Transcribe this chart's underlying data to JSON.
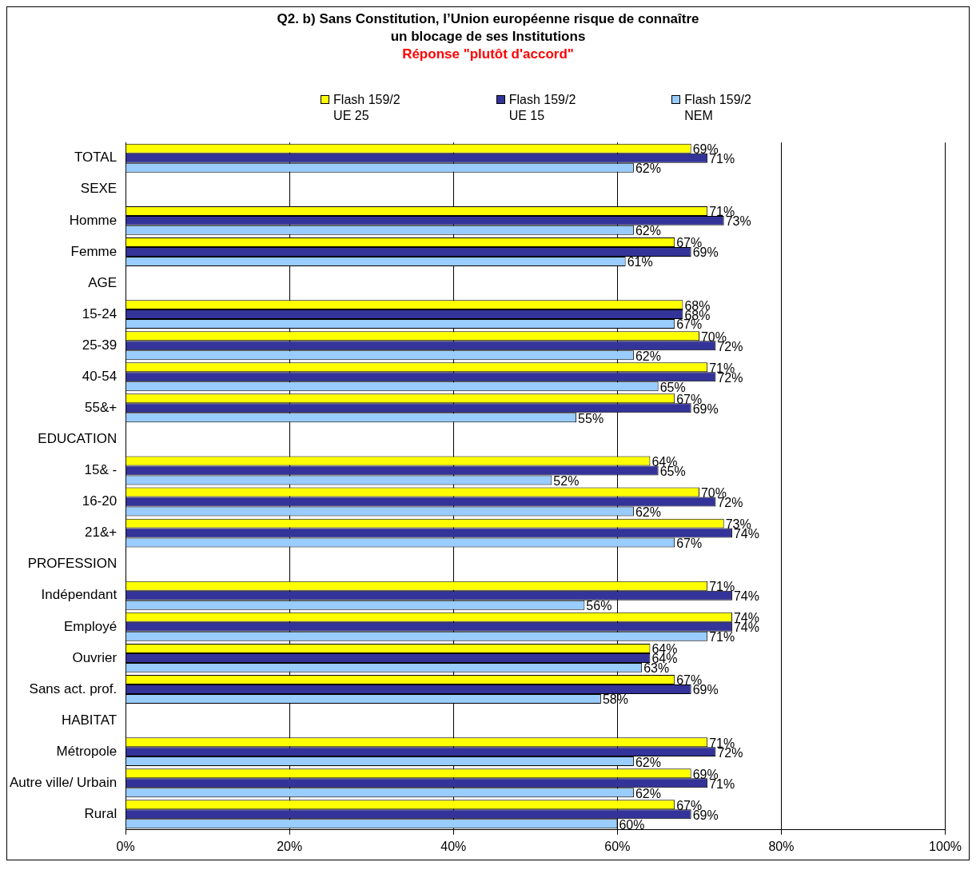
{
  "chart_data": {
    "type": "bar",
    "orientation": "horizontal",
    "title": "Q2. b) Sans Constitution, l’Union européenne risque de connaître\nun blocage de ses Institutions",
    "subtitle": "Réponse \"plutôt d'accord\"",
    "categories": [
      "TOTAL",
      "SEXE",
      "Homme",
      "Femme",
      "AGE",
      "15-24",
      "25-39",
      "40-54",
      "55&+",
      "EDUCATION",
      "15& -",
      "16-20",
      "21&+",
      "PROFESSION",
      "Indépendant",
      "Employé",
      "Ouvrier",
      "Sans act. prof.",
      "HABITAT",
      "Métropole",
      "Autre ville/ Urbain",
      "Rural"
    ],
    "series": [
      {
        "name": "Flash 159/2\nUE 25",
        "color": "#ffff00",
        "values": [
          69,
          null,
          71,
          67,
          null,
          68,
          70,
          71,
          67,
          null,
          64,
          70,
          73,
          null,
          71,
          74,
          64,
          67,
          null,
          71,
          69,
          67
        ],
        "value_labels": [
          "69%",
          null,
          "71%",
          "67%",
          null,
          "68%",
          "70%",
          "71%",
          "67%",
          null,
          "64%",
          "70%",
          "73%",
          null,
          "71%",
          "74%",
          "64%",
          "67%",
          null,
          "71%",
          "69%",
          "67%"
        ]
      },
      {
        "name": "Flash 159/2\nUE 15",
        "color": "#333399",
        "values": [
          71,
          null,
          73,
          69,
          null,
          68,
          72,
          72,
          69,
          null,
          65,
          72,
          74,
          null,
          74,
          74,
          64,
          69,
          null,
          72,
          71,
          69
        ],
        "value_labels": [
          "71%",
          null,
          "73%",
          "69%",
          null,
          "68%",
          "72%",
          "72%",
          "69%",
          null,
          "65%",
          "72%",
          "74%",
          null,
          "74%",
          "74%",
          "64%",
          "69%",
          null,
          "72%",
          "71%",
          "69%"
        ]
      },
      {
        "name": "Flash 159/2\nNEM",
        "color": "#99ccff",
        "values": [
          62,
          null,
          62,
          61,
          null,
          67,
          62,
          65,
          55,
          null,
          52,
          62,
          67,
          null,
          56,
          71,
          63,
          58,
          null,
          62,
          62,
          60
        ],
        "value_labels": [
          "62%",
          null,
          "62%",
          "61%",
          null,
          "67%",
          "62%",
          "65%",
          "55%",
          null,
          "52%",
          "62%",
          "67%",
          null,
          "56%",
          "71%",
          "63%",
          "58%",
          null,
          "62%",
          "62%",
          "60%"
        ]
      }
    ],
    "xlim": [
      0,
      100
    ],
    "xticks": [
      {
        "value": 0,
        "label": "0%"
      },
      {
        "value": 20,
        "label": "20%"
      },
      {
        "value": 40,
        "label": "40%"
      },
      {
        "value": 60,
        "label": "60%"
      },
      {
        "value": 80,
        "label": "80%"
      },
      {
        "value": 100,
        "label": "100%"
      }
    ],
    "grid": "x",
    "legend": "top"
  }
}
